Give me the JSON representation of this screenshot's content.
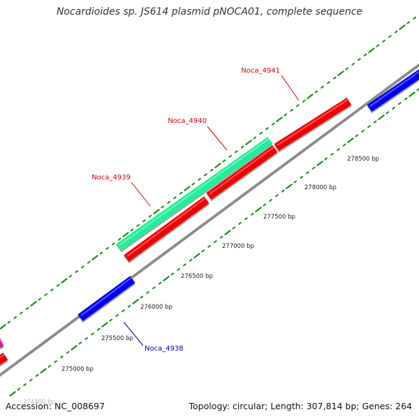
{
  "title": "Nocardioides sp. JS614 plasmid pNOCA01, complete sequence",
  "footer": {
    "accession": "Accession: NC_008697",
    "topology": "Topology: circular; Length: 307,814 bp; Genes: 264"
  },
  "colors": {
    "backbone": "#8c8c8c",
    "tick": "#1a8a1a",
    "gene_red": "#ee0000",
    "gene_blue": "#0000ee",
    "gene_green": "#22ee99",
    "gene_magenta": "#cc2299",
    "label_red": "#cc0000",
    "label_blue": "#0000bb"
  },
  "scale_labels": [
    "274500 bp",
    "275000 bp",
    "275500 bp",
    "276000 bp",
    "276500 bp",
    "277000 bp",
    "277500 bp",
    "278000 bp",
    "278500 bp"
  ],
  "genes": [
    {
      "id": "Noca_4938",
      "label": "Noca_4938",
      "color": "gene_blue"
    },
    {
      "id": "Noca_4939",
      "label": "Noca_4939",
      "color": "gene_red"
    },
    {
      "id": "Noca_4940",
      "label": "Noca_4940",
      "color": "gene_green"
    },
    {
      "id": "Noca_4941",
      "label": "Noca_4941",
      "color": "gene_red"
    }
  ]
}
